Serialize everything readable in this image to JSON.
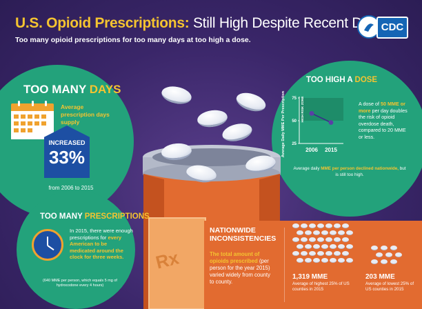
{
  "header": {
    "title_main": "U.S. Opioid Prescriptions:",
    "title_rest": "Still High Despite Recent Declines",
    "subtitle": "Too many opioid prescriptions for too many days at too high a dose.",
    "logo_text": "CDC"
  },
  "days": {
    "title_a": "TOO MANY",
    "title_b": "DAYS",
    "label": "Average prescription days supply",
    "increase_label": "INCREASED",
    "increase_value": "33%",
    "period": "from 2006 to 2015"
  },
  "prescriptions": {
    "title_a": "TOO MANY",
    "title_b": "PRESCRIPTIONS",
    "text_a": "In 2015, there were enough prescriptions for",
    "text_b": "every American to be medicated around the clock for three weeks.",
    "note": "(640 MME per person, which equals 5 mg of hydrocodone every 4 hours)"
  },
  "dose": {
    "title_a": "TOO HIGH A",
    "title_b": "DOSE",
    "text_a": "A dose of",
    "text_b": "50 MME or more",
    "text_c": "per day doubles the risk of opioid overdose death, compared to 20 MME or less.",
    "caption_a": "Average daily",
    "caption_b": "MME per person declined nationwide,",
    "caption_c": "but is still too high."
  },
  "chart_data": {
    "type": "line",
    "x": [
      "2006",
      "2015"
    ],
    "series": [
      {
        "values": [
          58,
          48
        ]
      }
    ],
    "ylabel": "Average Daily MME Per Prescription",
    "yticks": [
      25,
      50,
      75
    ],
    "ylim": [
      25,
      75
    ],
    "annotation": "HIGH RISK ZONE",
    "annotation_threshold": 50
  },
  "nationwide": {
    "title": "NATIONWIDE INCONSISTENCIES",
    "text_a": "The total amount of opioids prescribed",
    "text_b": "(per person for the year 2015) varied widely from county to county.",
    "high_value": "1,319 MME",
    "high_label": "Average of highest 25% of US counties in 2015",
    "low_value": "203 MME",
    "low_label": "Average of lowest 25% of US counties in 2015"
  },
  "bottle": {
    "label": "Rx"
  },
  "colors": {
    "background": "#3a2669",
    "green": "#23a27b",
    "yellow": "#f5c430",
    "orange": "#e26b30",
    "blue": "#1d4fa3"
  }
}
